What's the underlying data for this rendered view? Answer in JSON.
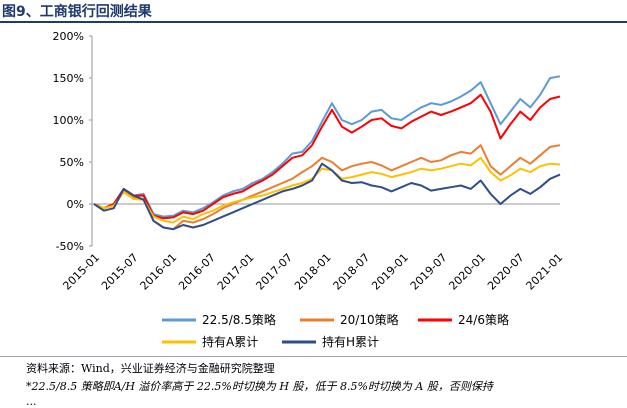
{
  "figure": {
    "title": "图9、工商银行回测结果",
    "source": "资料来源：Wind，兴业证券经济与金融研究院整理",
    "note": "*22.5/8.5 策略即A/H 溢价率高于 22.5%时切换为 H 股，低于 8.5%时切换为 A 股，否则保持",
    "note_cont": "..."
  },
  "chart_data": {
    "type": "line",
    "ylim": [
      -50,
      200
    ],
    "yticks": [
      "200%",
      "150%",
      "100%",
      "50%",
      "0%",
      "-50%"
    ],
    "ytick_values": [
      200,
      150,
      100,
      50,
      0,
      -50
    ],
    "xtick_labels": [
      "2015-01",
      "2015-07",
      "2016-01",
      "2016-07",
      "2017-01",
      "2017-07",
      "2018-01",
      "2018-07",
      "2019-01",
      "2019-07",
      "2020-01",
      "2020-07",
      "2021-01"
    ],
    "grid": false,
    "legend_position": "bottom",
    "series": [
      {
        "name": "22.5/8.5策略",
        "color": "#5b9bd5",
        "values": [
          0,
          -5,
          0,
          18,
          10,
          12,
          -12,
          -15,
          -14,
          -8,
          -10,
          -5,
          2,
          10,
          15,
          18,
          25,
          30,
          38,
          48,
          60,
          62,
          75,
          98,
          120,
          100,
          95,
          100,
          110,
          112,
          102,
          100,
          108,
          115,
          120,
          118,
          122,
          128,
          135,
          145,
          120,
          95,
          110,
          125,
          115,
          130,
          150,
          152
        ]
      },
      {
        "name": "20/10策略",
        "color": "#ed7d31",
        "values": [
          0,
          -5,
          -2,
          16,
          8,
          6,
          -20,
          -28,
          -30,
          -20,
          -22,
          -18,
          -12,
          -5,
          0,
          5,
          10,
          15,
          20,
          25,
          30,
          38,
          45,
          55,
          50,
          40,
          45,
          48,
          50,
          46,
          40,
          45,
          50,
          55,
          50,
          52,
          58,
          62,
          60,
          70,
          45,
          35,
          45,
          55,
          48,
          58,
          68,
          70
        ]
      },
      {
        "name": "24/6策略",
        "color": "#ff0000",
        "values": [
          0,
          -5,
          0,
          18,
          10,
          10,
          -14,
          -17,
          -16,
          -10,
          -12,
          -8,
          0,
          8,
          12,
          15,
          22,
          28,
          35,
          45,
          55,
          58,
          70,
          92,
          112,
          92,
          85,
          92,
          100,
          102,
          93,
          90,
          98,
          104,
          110,
          106,
          110,
          115,
          120,
          130,
          110,
          78,
          95,
          110,
          100,
          115,
          125,
          128
        ]
      },
      {
        "name": "持有A累计",
        "color": "#ffc000",
        "values": [
          0,
          -5,
          -2,
          14,
          6,
          5,
          -15,
          -20,
          -22,
          -15,
          -18,
          -12,
          -8,
          -2,
          2,
          5,
          8,
          10,
          14,
          18,
          22,
          25,
          30,
          42,
          40,
          30,
          32,
          35,
          38,
          36,
          32,
          35,
          38,
          42,
          40,
          42,
          45,
          48,
          46,
          55,
          38,
          28,
          34,
          42,
          38,
          45,
          48,
          47
        ]
      },
      {
        "name": "持有H累计",
        "color": "#2f4d8a",
        "values": [
          0,
          -8,
          -5,
          18,
          10,
          5,
          -20,
          -28,
          -30,
          -25,
          -28,
          -25,
          -20,
          -15,
          -10,
          -5,
          0,
          5,
          10,
          15,
          18,
          22,
          28,
          48,
          40,
          28,
          25,
          26,
          22,
          20,
          15,
          20,
          25,
          22,
          16,
          18,
          20,
          22,
          18,
          28,
          12,
          0,
          10,
          18,
          12,
          20,
          30,
          35
        ]
      }
    ]
  }
}
